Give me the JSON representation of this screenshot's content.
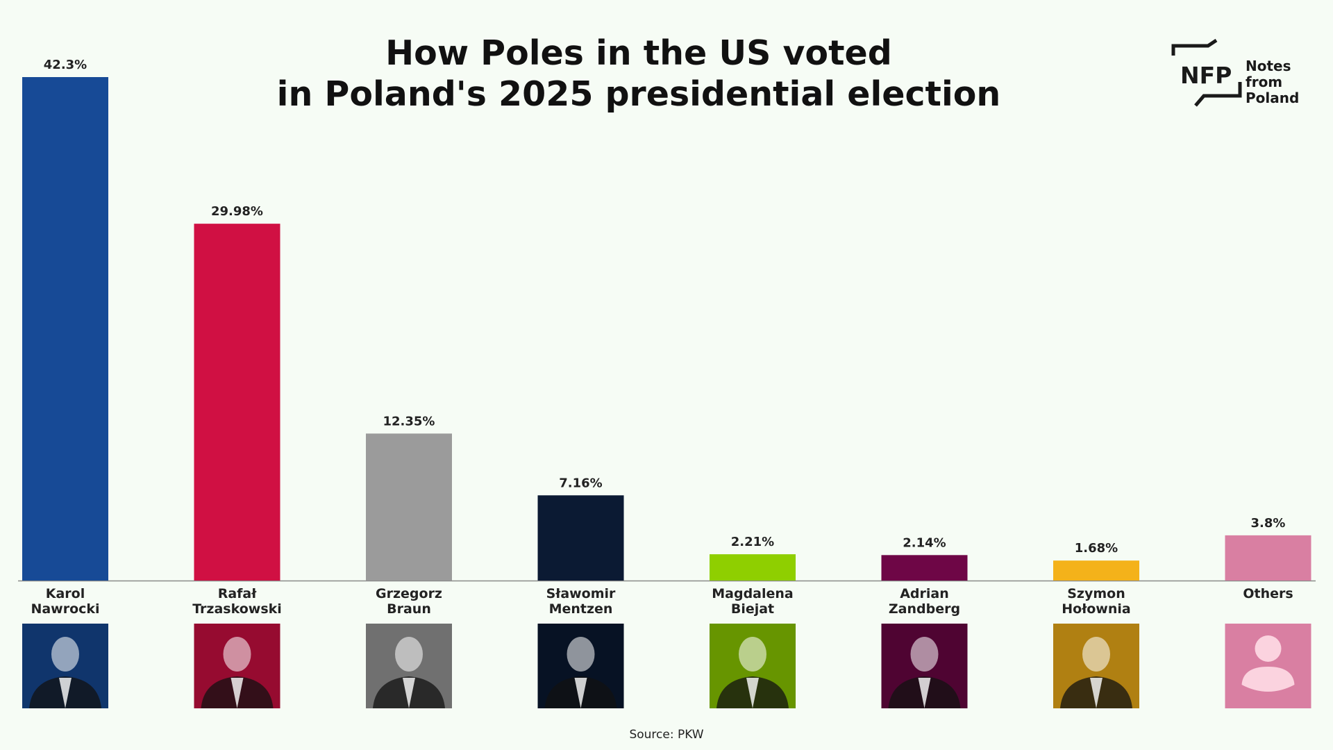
{
  "title_lines": [
    "How Poles in the US voted",
    "in Poland's 2025 presidential election"
  ],
  "logo": {
    "mark": "NFP",
    "text_lines": [
      "Notes from",
      "Poland"
    ],
    "icon": "nfp-logo-icon"
  },
  "source": "Source: PKW",
  "chart_data": {
    "type": "bar",
    "title": "How Poles in the US voted in Poland's 2025 presidential election",
    "xlabel": "",
    "ylabel": "",
    "ylim": [
      0,
      42.3
    ],
    "grid": false,
    "legend": "none",
    "categories": [
      [
        "Karol",
        "Nawrocki"
      ],
      [
        "Rafał",
        "Trzaskowski"
      ],
      [
        "Grzegorz",
        "Braun"
      ],
      [
        "Sławomir",
        "Mentzen"
      ],
      [
        "Magdalena",
        "Biejat"
      ],
      [
        "Adrian",
        "Zandberg"
      ],
      [
        "Szymon",
        "Hołownia"
      ],
      [
        "Others"
      ]
    ],
    "values": [
      42.3,
      29.98,
      12.35,
      7.16,
      2.21,
      2.14,
      1.68,
      3.8
    ],
    "value_labels": [
      "42.3%",
      "29.98%",
      "12.35%",
      "7.16%",
      "2.21%",
      "2.14%",
      "1.68%",
      "3.8%"
    ],
    "colors": [
      "#174a96",
      "#d01043",
      "#9b9b9b",
      "#0b1a33",
      "#8fcf00",
      "#6e0646",
      "#f4b21a",
      "#d97fa2"
    ],
    "portrait_icons": [
      "portrait-photo",
      "portrait-photo",
      "portrait-photo",
      "portrait-photo",
      "portrait-photo",
      "portrait-photo",
      "portrait-photo",
      "person-placeholder-icon"
    ]
  }
}
